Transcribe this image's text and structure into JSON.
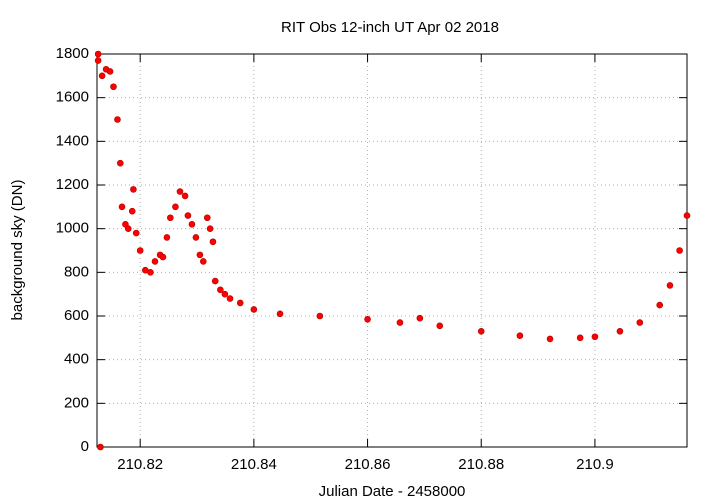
{
  "chart_data": {
    "type": "scatter",
    "title": "RIT Obs 12-inch UT Apr 02 2018",
    "x_label": "Julian Date - 2458000",
    "y_label": "background sky (DN)",
    "color": "#ff0000",
    "grid": true,
    "xlim": [
      210.8124,
      210.9162
    ],
    "ylim": [
      0,
      1800
    ],
    "xticks": [
      210.82,
      210.84,
      210.86,
      210.88,
      210.9
    ],
    "yticks": [
      0,
      200,
      400,
      600,
      800,
      1000,
      1200,
      1400,
      1600,
      1800
    ],
    "x": [
      210.8126,
      210.8126,
      210.813,
      210.8133,
      210.814,
      210.8147,
      210.8153,
      210.816,
      210.8165,
      210.8168,
      210.8174,
      210.8179,
      210.8186,
      210.8188,
      210.8193,
      210.82,
      210.8209,
      210.8218,
      210.8226,
      210.8235,
      210.824,
      210.8247,
      210.8253,
      210.8262,
      210.827,
      210.8279,
      210.8284,
      210.8291,
      210.8298,
      210.8305,
      210.8311,
      210.8318,
      210.8323,
      210.8328,
      210.8332,
      210.8341,
      210.8349,
      210.8358,
      210.8376,
      210.84,
      210.8446,
      210.8516,
      210.86,
      210.8657,
      210.8692,
      210.8727,
      210.88,
      210.8868,
      210.8921,
      210.8974,
      210.9,
      210.9044,
      210.9079,
      210.9114,
      210.9132,
      210.9149,
      210.9162
    ],
    "values": [
      1770,
      1800,
      0,
      1700,
      1730,
      1720,
      1650,
      1500,
      1300,
      1100,
      1020,
      1000,
      1080,
      1180,
      980,
      900,
      810,
      800,
      850,
      880,
      870,
      960,
      1050,
      1100,
      1170,
      1150,
      1060,
      1020,
      960,
      880,
      850,
      1050,
      1000,
      940,
      760,
      720,
      700,
      680,
      660,
      630,
      610,
      600,
      585,
      570,
      590,
      555,
      530,
      510,
      495,
      500,
      505,
      530,
      570,
      650,
      740,
      900,
      1060
    ]
  }
}
